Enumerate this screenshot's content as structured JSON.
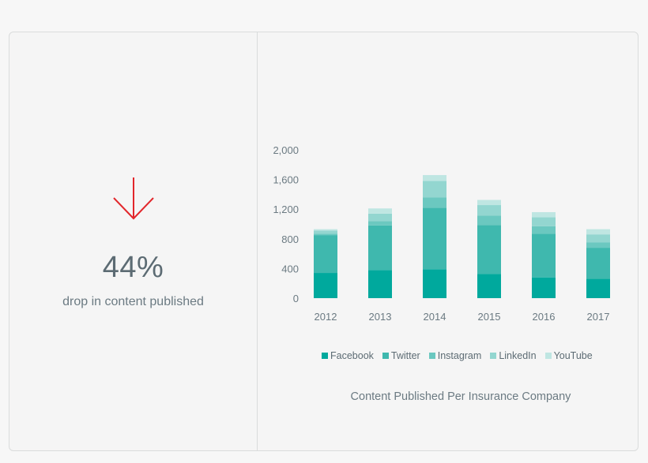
{
  "stat": {
    "value": "44%",
    "caption": "drop in content published",
    "arrow_color": "#e2262b"
  },
  "chart_data": {
    "type": "bar",
    "stacked": true,
    "title": "Content Published Per Insurance Company",
    "categories": [
      "2012",
      "2013",
      "2014",
      "2015",
      "2016",
      "2017"
    ],
    "ylim": [
      0,
      2000
    ],
    "yticks": [
      "0",
      "400",
      "800",
      "1,200",
      "1,600",
      "2,000"
    ],
    "ytick_values": [
      0,
      400,
      800,
      1200,
      1600,
      2000
    ],
    "grid": false,
    "legend_position": "bottom",
    "series": [
      {
        "name": "Facebook",
        "color": "#00a99d",
        "values": [
          340,
          380,
          390,
          325,
          280,
          260
        ]
      },
      {
        "name": "Twitter",
        "color": "#3fb8ae",
        "values": [
          510,
          600,
          830,
          660,
          590,
          420
        ]
      },
      {
        "name": "Instagram",
        "color": "#6bc8c0",
        "values": [
          20,
          60,
          140,
          130,
          100,
          70
        ]
      },
      {
        "name": "LinkedIn",
        "color": "#93d6d0",
        "values": [
          40,
          100,
          220,
          140,
          120,
          110
        ]
      },
      {
        "name": "YouTube",
        "color": "#bfe6e2",
        "values": [
          20,
          70,
          80,
          70,
          70,
          70
        ]
      }
    ]
  }
}
